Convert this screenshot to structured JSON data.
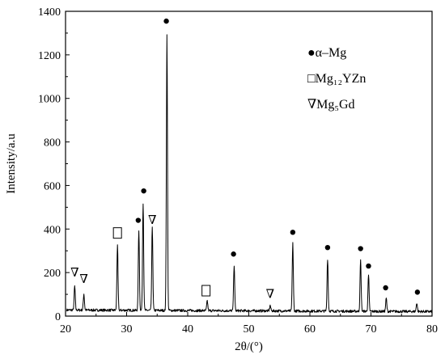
{
  "chart_data": {
    "type": "line",
    "title": "",
    "xlabel": "2θ/(°)",
    "ylabel": "Intensity/a.u",
    "xlim": [
      20,
      80
    ],
    "ylim": [
      0,
      1400
    ],
    "xticks": [
      20,
      30,
      40,
      50,
      60,
      70,
      80
    ],
    "yticks": [
      0,
      200,
      400,
      600,
      800,
      1000,
      1200,
      1400
    ],
    "grid": false,
    "legend_position": "top-right",
    "legend": [
      {
        "marker": "●",
        "label": "α–Mg"
      },
      {
        "marker": "□",
        "label": "Mg₁₂YZn"
      },
      {
        "marker": "∇",
        "label": "Mg₅Gd"
      }
    ],
    "peaks": [
      {
        "x": 21.5,
        "y": 110
      },
      {
        "x": 23.0,
        "y": 75
      },
      {
        "x": 28.5,
        "y": 295
      },
      {
        "x": 32.0,
        "y": 365
      },
      {
        "x": 32.7,
        "y": 495
      },
      {
        "x": 34.2,
        "y": 385
      },
      {
        "x": 36.6,
        "y": 1265
      },
      {
        "x": 43.2,
        "y": 45
      },
      {
        "x": 47.6,
        "y": 210
      },
      {
        "x": 53.5,
        "y": 25
      },
      {
        "x": 57.2,
        "y": 315
      },
      {
        "x": 62.9,
        "y": 240
      },
      {
        "x": 68.3,
        "y": 235
      },
      {
        "x": 69.6,
        "y": 165
      },
      {
        "x": 72.5,
        "y": 60
      },
      {
        "x": 77.5,
        "y": 40
      }
    ],
    "annotations": [
      {
        "marker": "∇",
        "x": 21.5,
        "y": 205
      },
      {
        "marker": "∇",
        "x": 23.0,
        "y": 175
      },
      {
        "marker": "□",
        "x": 28.5,
        "y": 380
      },
      {
        "marker": "●",
        "x": 31.9,
        "y": 440
      },
      {
        "marker": "●",
        "x": 32.8,
        "y": 575
      },
      {
        "marker": "∇",
        "x": 34.2,
        "y": 445
      },
      {
        "marker": "●",
        "x": 36.5,
        "y": 1355
      },
      {
        "marker": "□",
        "x": 43.0,
        "y": 115
      },
      {
        "marker": "●",
        "x": 47.5,
        "y": 285
      },
      {
        "marker": "∇",
        "x": 53.5,
        "y": 105
      },
      {
        "marker": "●",
        "x": 57.2,
        "y": 385
      },
      {
        "marker": "●",
        "x": 62.9,
        "y": 315
      },
      {
        "marker": "●",
        "x": 68.3,
        "y": 310
      },
      {
        "marker": "●",
        "x": 69.6,
        "y": 230
      },
      {
        "marker": "●",
        "x": 72.4,
        "y": 130
      },
      {
        "marker": "●",
        "x": 77.6,
        "y": 110
      }
    ]
  }
}
